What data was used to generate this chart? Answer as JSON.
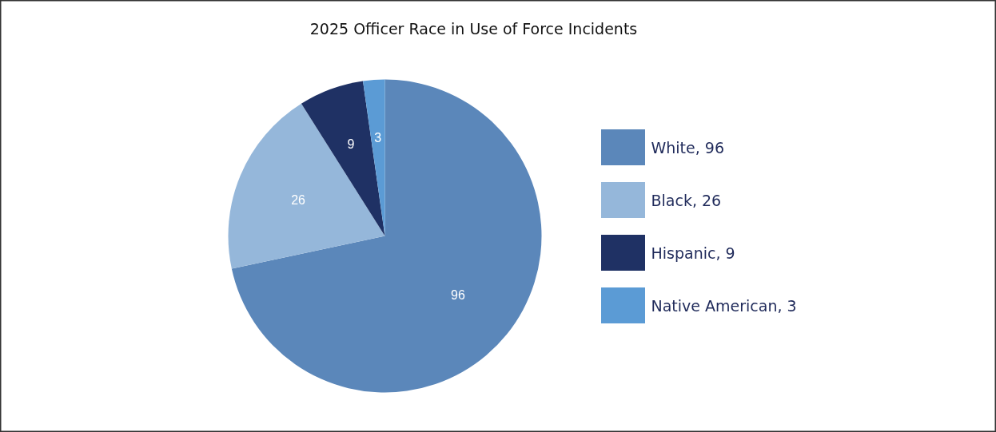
{
  "chart_data": {
    "type": "pie",
    "title": "2025 Officer Race in Use of Force Incidents",
    "categories": [
      "White, 96",
      "Black, 26",
      "Hispanic, 9",
      "Native American, 3"
    ],
    "values": [
      96,
      26,
      9,
      3
    ],
    "colors": [
      "#5b87ba",
      "#95b7da",
      "#1f3164",
      "#5b9bd5"
    ],
    "data_labels": true,
    "legend": "right"
  }
}
